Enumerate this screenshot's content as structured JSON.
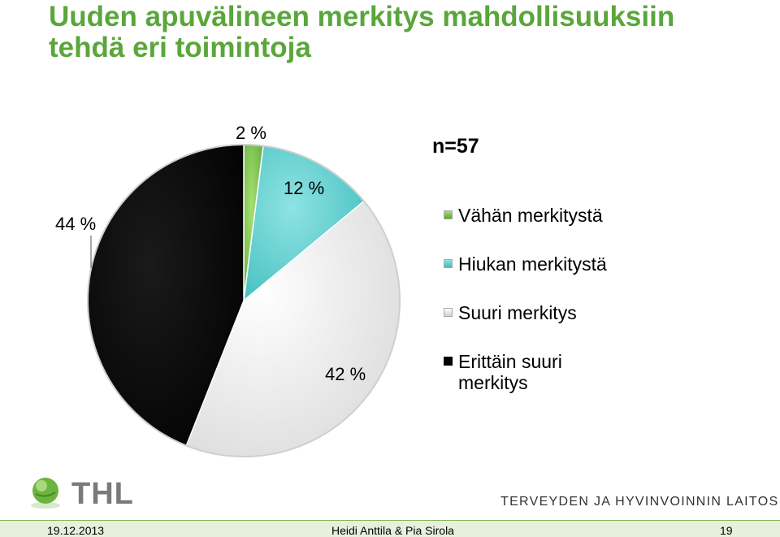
{
  "title_lines": [
    "Uuden apuvälineen merkitys mahdollisuuksiin",
    "tehdä eri toimintoja"
  ],
  "n_label": "n=57",
  "chart_data": {
    "type": "pie",
    "title": "",
    "slices": [
      {
        "name": "Vähän merkitystä",
        "value": 2,
        "label": "2 %",
        "color": "#7cc242"
      },
      {
        "name": "Hiukan merkitystä",
        "value": 12,
        "label": "12 %",
        "color": "#5ccfcf"
      },
      {
        "name": "Suuri merkitys",
        "value": 42,
        "label": "42 %",
        "color": "#f2f2f2"
      },
      {
        "name": "Erittäin suuri merkitys",
        "value": 44,
        "label": "44 %",
        "color": "#000000"
      }
    ],
    "legend_position": "right"
  },
  "legend": [
    {
      "label": "Vähän merkitystä",
      "color": "#7cc242"
    },
    {
      "label": "Hiukan merkitystä",
      "color": "#5ccfcf"
    },
    {
      "label": "Suuri merkitys",
      "color": "#f2f2f2"
    },
    {
      "label": "Erittäin suuri merkitys",
      "color": "#000000"
    }
  ],
  "logo_text": "THL",
  "org_name": "TERVEYDEN JA HYVINVOINNIN LAITOS",
  "footer": {
    "date": "19.12.2013",
    "author": "Heidi Anttila & Pia Sirola",
    "page": "19"
  }
}
